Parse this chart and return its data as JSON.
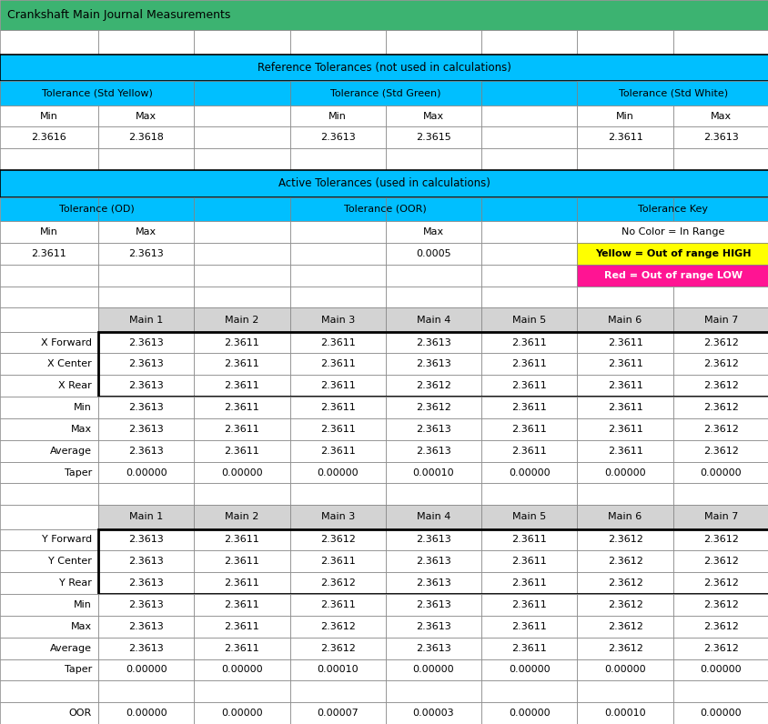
{
  "title": "Crankshaft Main Journal Measurements",
  "title_bg": "#3cb371",
  "cyan_bg": "#00bfff",
  "yellow_bg": "#ffff00",
  "magenta_bg": "#ff1493",
  "light_gray_bg": "#d3d3d3",
  "white_bg": "#ffffff",
  "ref_tol_row": "Reference Tolerances (not used in calculations)",
  "active_tol_row": "Active Tolerances (used in calculations)",
  "tol_std_yellow_min": "2.3616",
  "tol_std_yellow_max": "2.3618",
  "tol_std_green_min": "2.3613",
  "tol_std_green_max": "2.3615",
  "tol_std_white_min": "2.3611",
  "tol_std_white_max": "2.3613",
  "tol_od_min": "2.3611",
  "tol_od_max": "2.3613",
  "tol_oor_max": "0.0005",
  "key_no_color": "No Color = In Range",
  "key_yellow": "Yellow = Out of range HIGH",
  "key_red": "Red = Out of range LOW",
  "mains": [
    "Main 1",
    "Main 2",
    "Main 3",
    "Main 4",
    "Main 5",
    "Main 6",
    "Main 7"
  ],
  "x_forward": [
    "2.3613",
    "2.3611",
    "2.3611",
    "2.3613",
    "2.3611",
    "2.3611",
    "2.3612"
  ],
  "x_center": [
    "2.3613",
    "2.3611",
    "2.3611",
    "2.3613",
    "2.3611",
    "2.3611",
    "2.3612"
  ],
  "x_rear": [
    "2.3613",
    "2.3611",
    "2.3611",
    "2.3612",
    "2.3611",
    "2.3611",
    "2.3612"
  ],
  "x_min": [
    "2.3613",
    "2.3611",
    "2.3611",
    "2.3612",
    "2.3611",
    "2.3611",
    "2.3612"
  ],
  "x_max": [
    "2.3613",
    "2.3611",
    "2.3611",
    "2.3613",
    "2.3611",
    "2.3611",
    "2.3612"
  ],
  "x_avg": [
    "2.3613",
    "2.3611",
    "2.3611",
    "2.3613",
    "2.3611",
    "2.3611",
    "2.3612"
  ],
  "x_taper": [
    "0.00000",
    "0.00000",
    "0.00000",
    "0.00010",
    "0.00000",
    "0.00000",
    "0.00000"
  ],
  "y_forward": [
    "2.3613",
    "2.3611",
    "2.3612",
    "2.3613",
    "2.3611",
    "2.3612",
    "2.3612"
  ],
  "y_center": [
    "2.3613",
    "2.3611",
    "2.3611",
    "2.3613",
    "2.3611",
    "2.3612",
    "2.3612"
  ],
  "y_rear": [
    "2.3613",
    "2.3611",
    "2.3612",
    "2.3613",
    "2.3611",
    "2.3612",
    "2.3612"
  ],
  "y_min": [
    "2.3613",
    "2.3611",
    "2.3611",
    "2.3613",
    "2.3611",
    "2.3612",
    "2.3612"
  ],
  "y_max": [
    "2.3613",
    "2.3611",
    "2.3612",
    "2.3613",
    "2.3611",
    "2.3612",
    "2.3612"
  ],
  "y_avg": [
    "2.3613",
    "2.3611",
    "2.3612",
    "2.3613",
    "2.3611",
    "2.3612",
    "2.3612"
  ],
  "y_taper": [
    "0.00000",
    "0.00000",
    "0.00010",
    "0.00000",
    "0.00000",
    "0.00000",
    "0.00000"
  ],
  "oor": [
    "0.00000",
    "0.00000",
    "0.00007",
    "0.00003",
    "0.00000",
    "0.00010",
    "0.00000"
  ]
}
